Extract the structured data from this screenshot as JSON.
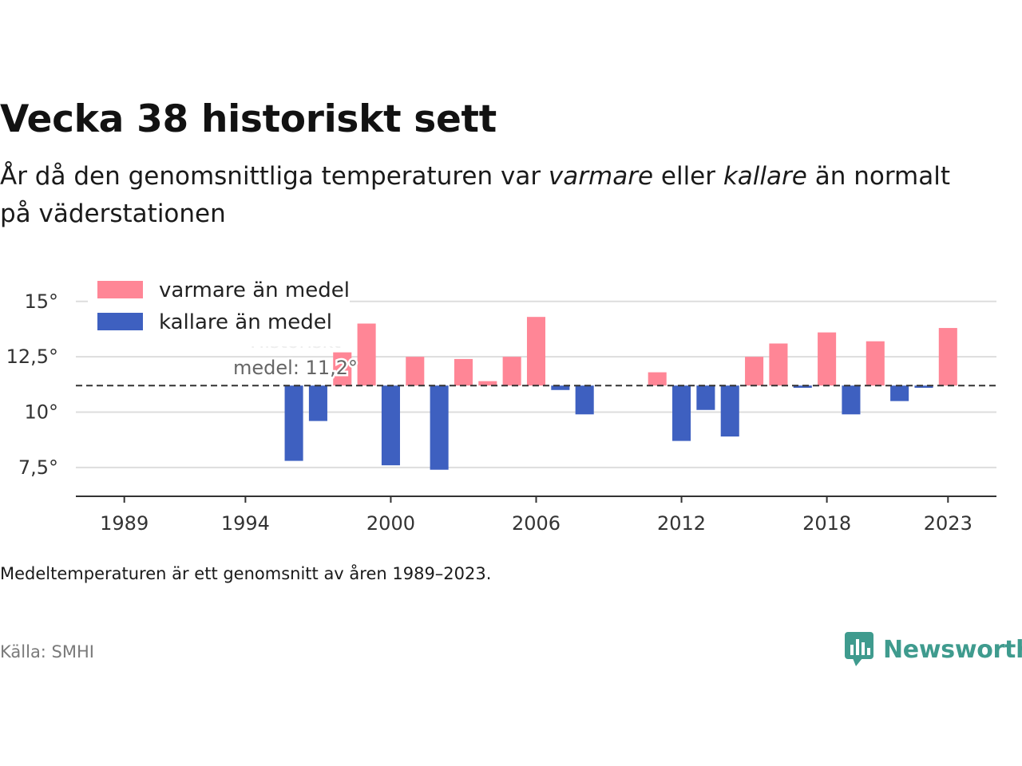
{
  "header": {
    "title": "Vecka 38 historiskt sett",
    "subtitle_before": "År då den genomsnittliga temperaturen var ",
    "subtitle_warm": "varmare",
    "subtitle_mid": " eller ",
    "subtitle_cold": "kallare",
    "subtitle_after": " än normalt på väderstationen"
  },
  "footer": {
    "note": "Medeltemperaturen är ett genomsnitt av åren 1989–2023.",
    "source": "Källa: SMHI",
    "brand": "Newsworthy"
  },
  "colors": {
    "warm": "#ff8696",
    "cold": "#3e60c0",
    "brand": "#3f9b8e"
  },
  "chart_data": {
    "type": "bar",
    "title": "Vecka 38 historiskt sett",
    "baseline": 11.2,
    "baseline_label_line1": "Historiskt",
    "baseline_label_line2": "medel: 11,2°",
    "xlim": [
      1987,
      2025
    ],
    "ylim": [
      6.2,
      16
    ],
    "y_ticks": [
      {
        "value": 7.5,
        "label": "7,5°"
      },
      {
        "value": 10,
        "label": "10°"
      },
      {
        "value": 12.5,
        "label": "12,5°"
      },
      {
        "value": 15,
        "label": "15°"
      }
    ],
    "x_ticks": [
      1989,
      1994,
      2000,
      2006,
      2012,
      2018,
      2023
    ],
    "grid": true,
    "legend_position": "top-left",
    "legend": [
      {
        "label": "varmare än medel",
        "kind": "warm"
      },
      {
        "label": "kallare än medel",
        "kind": "cold"
      }
    ],
    "series": [
      {
        "x": [
          1996,
          1997,
          1998,
          1999,
          2000,
          2001,
          2002,
          2003,
          2004,
          2005,
          2006,
          2007,
          2008,
          2011,
          2012,
          2013,
          2014,
          2015,
          2016,
          2017,
          2018,
          2019,
          2020,
          2021,
          2022,
          2023
        ],
        "values": [
          7.8,
          9.6,
          12.7,
          14.0,
          7.6,
          12.5,
          7.4,
          12.4,
          11.4,
          12.5,
          14.3,
          11.0,
          9.9,
          11.8,
          8.7,
          10.1,
          8.9,
          12.5,
          13.1,
          11.1,
          13.6,
          9.9,
          13.2,
          10.5,
          11.1,
          13.8
        ]
      }
    ]
  }
}
